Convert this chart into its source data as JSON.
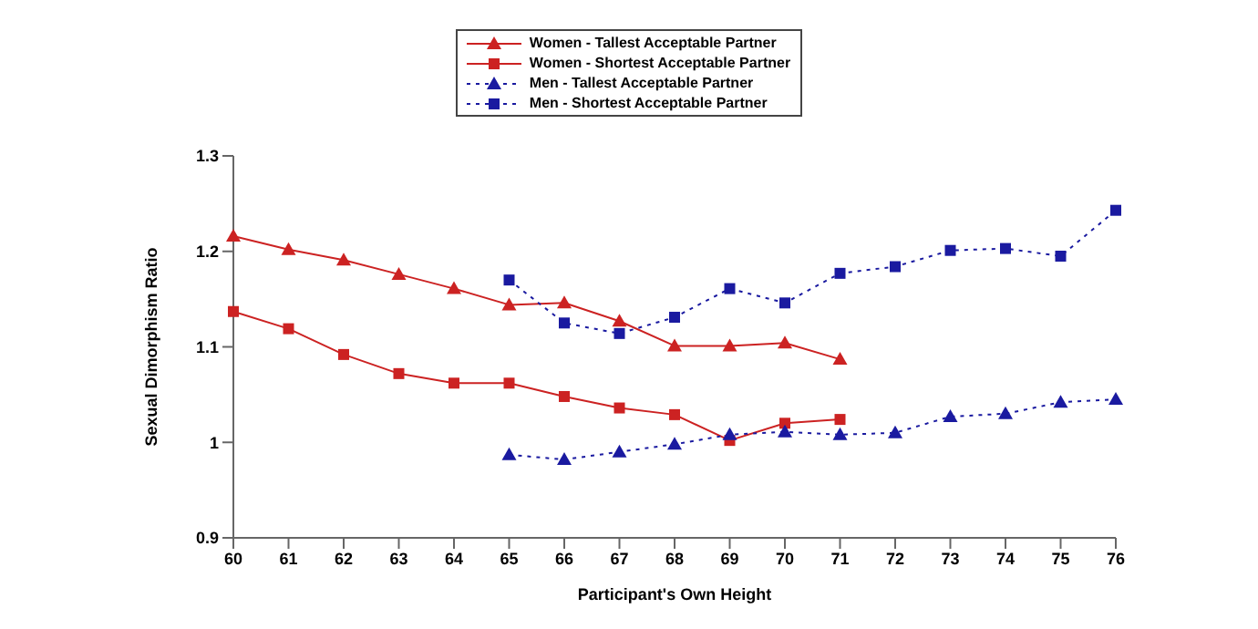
{
  "chart_data": {
    "type": "line",
    "xlabel": "Participant's Own Height",
    "ylabel": "Sexual Dimorphism Ratio",
    "categories": [
      "60",
      "61",
      "62",
      "63",
      "64",
      "65",
      "66",
      "67",
      "68",
      "69",
      "70",
      "71",
      "72",
      "73",
      "74",
      "75",
      "76"
    ],
    "ylim": [
      0.9,
      1.3
    ],
    "yticks": [
      0.9,
      1,
      1.1,
      1.2,
      1.3
    ],
    "grid": false,
    "legend": "top",
    "series": [
      {
        "name": "Women - Tallest Acceptable Partner",
        "color": "#cc2222",
        "marker": "triangle",
        "line_style": "solid",
        "values": [
          1.216,
          1.202,
          1.191,
          1.176,
          1.161,
          1.144,
          1.146,
          1.127,
          1.101,
          1.101,
          1.104,
          1.087,
          null,
          null,
          null,
          null,
          null
        ]
      },
      {
        "name": "Women - Shortest Acceptable Partner",
        "color": "#cc2222",
        "marker": "square",
        "line_style": "solid",
        "values": [
          1.137,
          1.119,
          1.092,
          1.072,
          1.062,
          1.062,
          1.048,
          1.036,
          1.029,
          1.002,
          1.02,
          1.024,
          null,
          null,
          null,
          null,
          null
        ]
      },
      {
        "name": "Men - Tallest Acceptable Partner",
        "color": "#1a1aa0",
        "marker": "triangle",
        "line_style": "dotted",
        "values": [
          null,
          null,
          null,
          null,
          null,
          0.987,
          0.982,
          0.99,
          0.998,
          1.008,
          1.011,
          1.008,
          1.01,
          1.027,
          1.03,
          1.042,
          1.045
        ]
      },
      {
        "name": "Men - Shortest Acceptable Partner",
        "color": "#1a1aa0",
        "marker": "square",
        "line_style": "dotted",
        "values": [
          null,
          null,
          null,
          null,
          null,
          1.17,
          1.125,
          1.114,
          1.131,
          1.161,
          1.146,
          1.177,
          1.184,
          1.201,
          1.203,
          1.195,
          1.243
        ]
      }
    ]
  }
}
